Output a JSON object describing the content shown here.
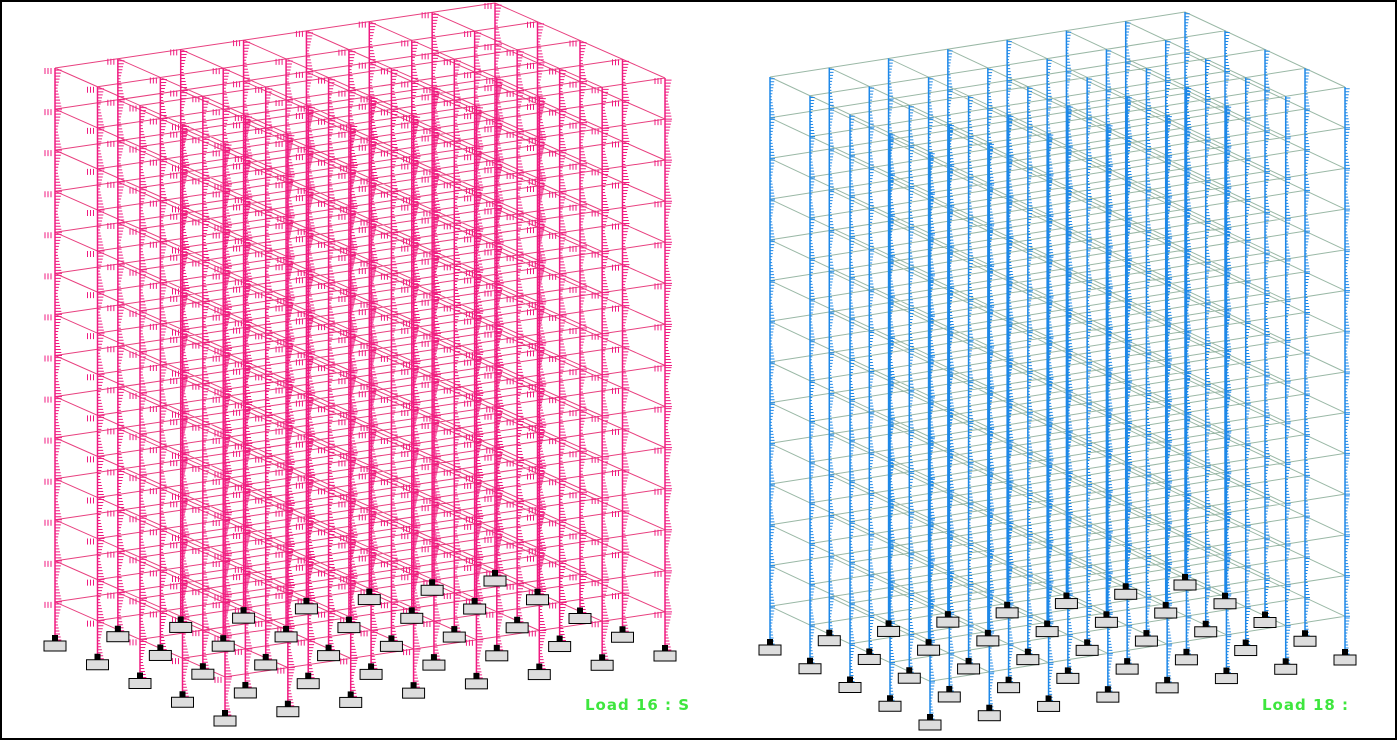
{
  "panels": [
    {
      "label": "Load 16 : S"
    },
    {
      "label": "Load 18 :"
    }
  ]
}
